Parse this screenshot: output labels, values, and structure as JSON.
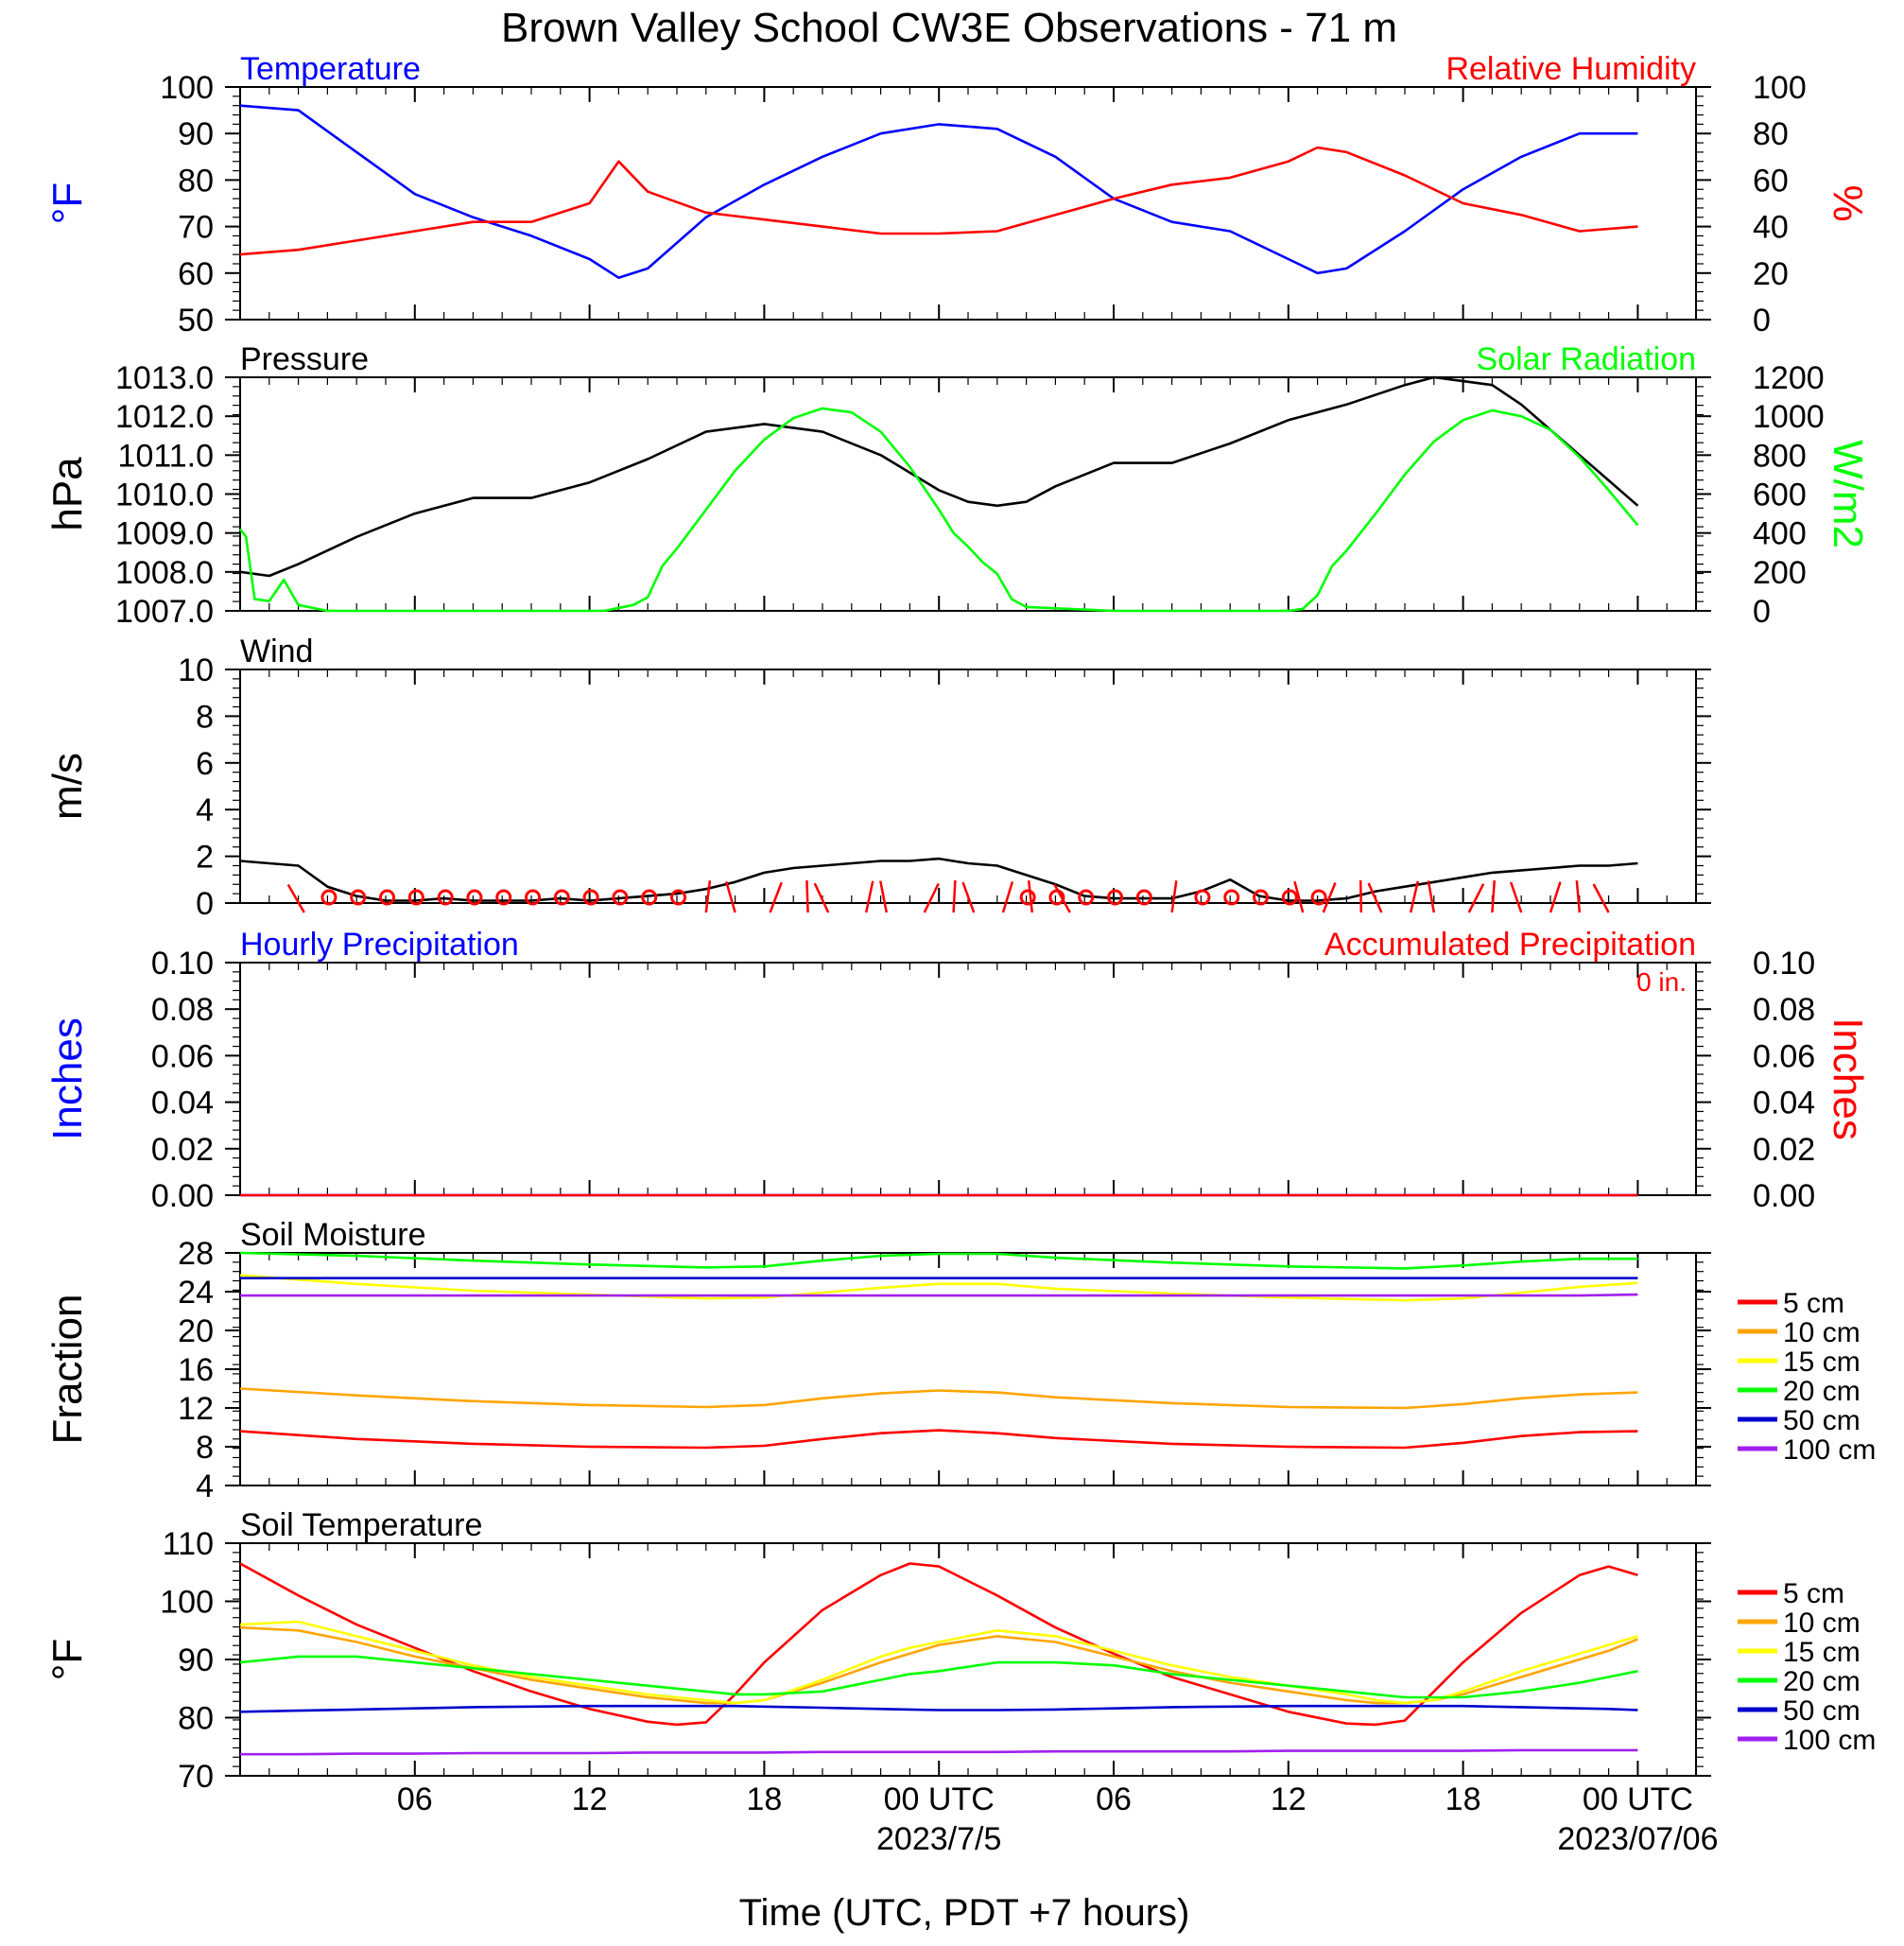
{
  "title": "Brown Valley School CW3E Observations - 71 m",
  "xlabel": "Time (UTC, PDT +7 hours)",
  "x_ticks": [
    "06",
    "12",
    "18",
    "00 UTC",
    "06",
    "12",
    "18",
    "00 UTC"
  ],
  "x_dates": [
    "2023/7/5",
    "2023/07/06"
  ],
  "colors": {
    "blue": "#0000ff",
    "red": "#ff0000",
    "green": "#00ff00",
    "black": "#000000",
    "orange": "#ffa500",
    "yellow": "#ffff00",
    "darkblue": "#0000cd",
    "purple": "#a020f0"
  },
  "chart_data": [
    {
      "type": "line",
      "title_left": "Temperature",
      "title_right": "Relative Humidity",
      "ylabel_left": "°F",
      "ylabel_right": "%",
      "ylim_left": [
        50,
        100
      ],
      "ylim_right": [
        0,
        100
      ],
      "yticks_left": [
        "100",
        "90",
        "80",
        "70",
        "60",
        "50"
      ],
      "yticks_right": [
        "100",
        "80",
        "60",
        "40",
        "20",
        "0"
      ],
      "x_hours": [
        0,
        2,
        4,
        6,
        8,
        10,
        12,
        13,
        14,
        16,
        18,
        20,
        22,
        24,
        26,
        28,
        30,
        32,
        34,
        36,
        37,
        38,
        40,
        42,
        44,
        46,
        48
      ],
      "series": [
        {
          "name": "Temperature",
          "axis": "left",
          "color": "blue",
          "values": [
            96,
            95,
            86,
            77,
            72,
            68,
            63,
            59,
            61,
            72,
            79,
            85,
            90,
            92,
            91,
            85,
            76,
            71,
            69,
            63,
            60,
            61,
            69,
            78,
            85,
            90,
            90
          ]
        },
        {
          "name": "Relative Humidity",
          "axis": "right",
          "color": "red",
          "values": [
            28,
            30,
            34,
            38,
            42,
            42,
            50,
            68,
            55,
            46,
            43,
            40,
            37,
            37,
            38,
            45,
            52,
            58,
            61,
            68,
            74,
            72,
            62,
            50,
            45,
            38,
            40
          ]
        }
      ]
    },
    {
      "type": "line",
      "title_left": "Pressure",
      "title_right": "Solar Radiation",
      "ylabel_left": "hPa",
      "ylabel_right": "W/m2",
      "ylim_left": [
        1007,
        1013
      ],
      "ylim_right": [
        0,
        1200
      ],
      "yticks_left": [
        "1013.0",
        "1012.0",
        "1011.0",
        "1010.0",
        "1009.0",
        "1008.0",
        "1007.0"
      ],
      "yticks_right": [
        "1200",
        "1000",
        "800",
        "600",
        "400",
        "200",
        "0"
      ],
      "series": [
        {
          "name": "Pressure",
          "axis": "left",
          "color": "black",
          "x_hours": [
            0,
            1,
            2,
            4,
            6,
            8,
            10,
            12,
            14,
            16,
            18,
            20,
            22,
            24,
            25,
            26,
            27,
            28,
            30,
            32,
            34,
            36,
            38,
            40,
            41,
            42,
            43,
            44,
            46,
            48
          ],
          "values": [
            1008.0,
            1007.9,
            1008.2,
            1008.9,
            1009.5,
            1009.9,
            1009.9,
            1010.3,
            1010.9,
            1011.6,
            1011.8,
            1011.6,
            1011.0,
            1010.1,
            1009.8,
            1009.7,
            1009.8,
            1010.2,
            1010.8,
            1010.8,
            1011.3,
            1011.9,
            1012.3,
            1012.8,
            1013.0,
            1012.9,
            1012.8,
            1012.3,
            1011.0,
            1009.7
          ]
        },
        {
          "name": "Solar Radiation",
          "axis": "right",
          "color": "green",
          "x_hours": [
            0,
            0.2,
            0.5,
            1.0,
            1.5,
            2.0,
            3.0,
            5,
            8,
            11,
            12.5,
            13.5,
            14.0,
            14.5,
            15,
            16,
            17,
            18,
            19,
            20,
            21,
            22,
            23,
            24,
            24.5,
            25,
            25.5,
            26,
            26.5,
            27,
            30,
            33,
            36,
            36.5,
            37,
            37.5,
            38,
            39,
            40,
            41,
            42,
            43,
            44,
            45,
            46,
            47,
            48
          ],
          "values": [
            420,
            380,
            60,
            50,
            160,
            30,
            0,
            0,
            0,
            0,
            0,
            30,
            70,
            230,
            320,
            520,
            720,
            880,
            990,
            1040,
            1020,
            920,
            740,
            520,
            400,
            330,
            250,
            190,
            60,
            20,
            0,
            0,
            0,
            10,
            80,
            230,
            310,
            500,
            700,
            870,
            980,
            1030,
            1000,
            930,
            790,
            620,
            440
          ]
        }
      ]
    },
    {
      "type": "line",
      "title_left": "Wind",
      "ylabel_left": "m/s",
      "ylim_left": [
        0,
        10
      ],
      "yticks_left": [
        "10",
        "8",
        "6",
        "4",
        "2",
        "0"
      ],
      "x_hours": [
        0,
        1,
        2,
        3,
        4,
        5,
        6,
        7,
        8,
        9,
        10,
        11,
        12,
        13,
        14,
        15,
        16,
        17,
        18,
        19,
        20,
        21,
        22,
        23,
        24,
        25,
        26,
        27,
        28,
        29,
        30,
        31,
        32,
        33,
        34,
        35,
        36,
        37,
        38,
        39,
        40,
        41,
        42,
        43,
        44,
        45,
        46,
        47,
        48
      ],
      "series": [
        {
          "name": "Wind",
          "color": "black",
          "values": [
            1.8,
            1.7,
            1.6,
            0.7,
            0.3,
            0.1,
            0.1,
            0.2,
            0.1,
            0.1,
            0.1,
            0.2,
            0.1,
            0.2,
            0.3,
            0.4,
            0.6,
            0.9,
            1.3,
            1.5,
            1.6,
            1.7,
            1.8,
            1.8,
            1.9,
            1.7,
            1.6,
            1.2,
            0.8,
            0.3,
            0.2,
            0.2,
            0.2,
            0.5,
            1.0,
            0.3,
            0.1,
            0.1,
            0.2,
            0.5,
            0.7,
            0.9,
            1.1,
            1.3,
            1.4,
            1.5,
            1.6,
            1.6,
            1.7
          ]
        }
      ],
      "calm_markers_hours": [
        3,
        4,
        5,
        6,
        7,
        8,
        9,
        10,
        11,
        12,
        13,
        14,
        15,
        27,
        28,
        29,
        30,
        31,
        33,
        34,
        35,
        36,
        37
      ],
      "barb_hours": [
        2.2,
        16,
        17,
        18.2,
        19.5,
        20.2,
        21.5,
        22.2,
        23.5,
        24.5,
        25.2,
        26.2,
        27.2,
        28.5,
        32,
        36.5,
        37.2,
        38.5,
        39.2,
        40.2,
        41,
        42.2,
        43,
        44,
        45,
        46,
        47
      ]
    },
    {
      "type": "line",
      "title_left": "Hourly Precipitation",
      "title_right": "Accumulated Precipitation",
      "annotation": "0 in.",
      "ylabel_left": "Inches",
      "ylabel_right": "Inches",
      "ylim_left": [
        0,
        0.1
      ],
      "ylim_right": [
        0,
        0.1
      ],
      "yticks_left": [
        "0.10",
        "0.08",
        "0.06",
        "0.04",
        "0.02",
        "0.00"
      ],
      "yticks_right": [
        "0.10",
        "0.08",
        "0.06",
        "0.04",
        "0.02",
        "0.00"
      ],
      "x_hours": [
        0,
        48
      ],
      "series": [
        {
          "name": "Hourly Precipitation",
          "color": "blue",
          "values": [
            0,
            0
          ]
        },
        {
          "name": "Accumulated Precipitation",
          "color": "red",
          "values": [
            0,
            0
          ]
        }
      ]
    },
    {
      "type": "line",
      "title_left": "Soil Moisture",
      "ylabel_left": "Fraction",
      "ylim_left": [
        4,
        28
      ],
      "yticks_left": [
        "28",
        "24",
        "20",
        "16",
        "12",
        "8",
        "4"
      ],
      "legend": [
        "5 cm",
        "10 cm",
        "15 cm",
        "20 cm",
        "50 cm",
        "100 cm"
      ],
      "legend_colors": [
        "red",
        "orange",
        "yellow",
        "green",
        "darkblue",
        "purple"
      ],
      "x_hours": [
        0,
        4,
        8,
        12,
        16,
        18,
        20,
        22,
        24,
        26,
        28,
        32,
        36,
        40,
        42,
        44,
        46,
        48
      ],
      "series": [
        {
          "name": "5 cm",
          "color": "red",
          "values": [
            9.6,
            8.8,
            8.3,
            8.0,
            7.9,
            8.1,
            8.8,
            9.4,
            9.7,
            9.4,
            8.9,
            8.3,
            8.0,
            7.9,
            8.4,
            9.1,
            9.5,
            9.6
          ]
        },
        {
          "name": "10 cm",
          "color": "orange",
          "values": [
            14.0,
            13.3,
            12.7,
            12.3,
            12.1,
            12.3,
            13.0,
            13.5,
            13.8,
            13.6,
            13.1,
            12.5,
            12.1,
            12.0,
            12.4,
            13.0,
            13.4,
            13.6
          ]
        },
        {
          "name": "15 cm",
          "color": "yellow",
          "values": [
            25.7,
            24.8,
            24.1,
            23.7,
            23.3,
            23.4,
            23.9,
            24.4,
            24.8,
            24.8,
            24.3,
            23.8,
            23.4,
            23.1,
            23.3,
            23.9,
            24.5,
            24.9
          ]
        },
        {
          "name": "20 cm",
          "color": "green",
          "values": [
            28.0,
            27.7,
            27.2,
            26.8,
            26.5,
            26.6,
            27.2,
            27.7,
            27.9,
            27.9,
            27.5,
            27.0,
            26.6,
            26.4,
            26.7,
            27.1,
            27.4,
            27.4
          ]
        },
        {
          "name": "50 cm",
          "color": "darkblue",
          "values": [
            25.4,
            25.4,
            25.4,
            25.4,
            25.4,
            25.4,
            25.4,
            25.4,
            25.4,
            25.4,
            25.4,
            25.4,
            25.4,
            25.4,
            25.4,
            25.4,
            25.4,
            25.4
          ]
        },
        {
          "name": "100 cm",
          "color": "purple",
          "values": [
            23.6,
            23.6,
            23.6,
            23.6,
            23.6,
            23.6,
            23.6,
            23.6,
            23.6,
            23.6,
            23.6,
            23.6,
            23.6,
            23.6,
            23.6,
            23.6,
            23.6,
            23.7
          ]
        }
      ]
    },
    {
      "type": "line",
      "title_left": "Soil Temperature",
      "ylabel_left": "°F",
      "ylim_left": [
        70,
        110
      ],
      "yticks_left": [
        "110",
        "100",
        "90",
        "80",
        "70"
      ],
      "legend": [
        "5 cm",
        "10 cm",
        "15 cm",
        "20 cm",
        "50 cm",
        "100 cm"
      ],
      "legend_colors": [
        "red",
        "orange",
        "yellow",
        "green",
        "darkblue",
        "purple"
      ],
      "x_hours": [
        0,
        2,
        4,
        6,
        8,
        10,
        12,
        14,
        15,
        16,
        17,
        18,
        20,
        22,
        23,
        24,
        26,
        28,
        30,
        32,
        34,
        36,
        38,
        39,
        40,
        41,
        42,
        44,
        46,
        47,
        48
      ],
      "series": [
        {
          "name": "5 cm",
          "color": "red",
          "values": [
            106.5,
            101.0,
            96.0,
            92.0,
            88.0,
            84.5,
            81.5,
            79.3,
            78.8,
            79.2,
            84.0,
            89.5,
            98.5,
            104.5,
            106.5,
            106.0,
            101.0,
            95.5,
            91.0,
            87.0,
            84.0,
            81.0,
            79.0,
            78.8,
            79.5,
            84.5,
            89.5,
            98.0,
            104.5,
            106.0,
            104.5
          ]
        },
        {
          "name": "10 cm",
          "color": "orange",
          "values": [
            95.5,
            95.0,
            93.0,
            90.5,
            88.5,
            86.5,
            85.0,
            83.5,
            83.0,
            82.5,
            82.5,
            83.0,
            86.0,
            89.5,
            91.0,
            92.5,
            94.0,
            93.0,
            90.5,
            88.0,
            86.0,
            84.5,
            83.0,
            82.5,
            82.5,
            83.0,
            84.0,
            87.0,
            90.0,
            91.5,
            93.5
          ]
        },
        {
          "name": "15 cm",
          "color": "yellow",
          "values": [
            96.0,
            96.5,
            94.0,
            91.5,
            89.0,
            87.0,
            85.5,
            84.0,
            83.5,
            83.0,
            82.5,
            83.0,
            86.5,
            90.5,
            92.0,
            93.0,
            95.0,
            94.0,
            91.5,
            89.0,
            87.0,
            85.5,
            84.0,
            83.0,
            82.5,
            83.0,
            84.5,
            88.0,
            91.0,
            92.5,
            94.0
          ]
        },
        {
          "name": "20 cm",
          "color": "green",
          "values": [
            89.5,
            90.5,
            90.5,
            89.5,
            88.5,
            87.5,
            86.5,
            85.5,
            85.0,
            84.5,
            84.0,
            84.0,
            84.5,
            86.5,
            87.5,
            88.0,
            89.5,
            89.5,
            89.0,
            87.5,
            86.5,
            85.5,
            84.5,
            84.0,
            83.5,
            83.5,
            83.5,
            84.5,
            86.0,
            87.0,
            88.0
          ]
        },
        {
          "name": "50 cm",
          "color": "darkblue",
          "values": [
            81.0,
            81.2,
            81.4,
            81.6,
            81.8,
            81.9,
            82.0,
            82.0,
            82.0,
            82.0,
            82.0,
            81.9,
            81.7,
            81.5,
            81.4,
            81.3,
            81.3,
            81.4,
            81.6,
            81.8,
            81.9,
            82.0,
            82.0,
            82.0,
            82.0,
            82.0,
            82.0,
            81.8,
            81.6,
            81.5,
            81.3
          ]
        },
        {
          "name": "100 cm",
          "color": "purple",
          "values": [
            73.7,
            73.7,
            73.8,
            73.8,
            73.9,
            73.9,
            73.9,
            74.0,
            74.0,
            74.0,
            74.0,
            74.0,
            74.1,
            74.1,
            74.1,
            74.1,
            74.1,
            74.2,
            74.2,
            74.2,
            74.2,
            74.3,
            74.3,
            74.3,
            74.3,
            74.3,
            74.3,
            74.4,
            74.4,
            74.4,
            74.4
          ]
        }
      ]
    }
  ]
}
